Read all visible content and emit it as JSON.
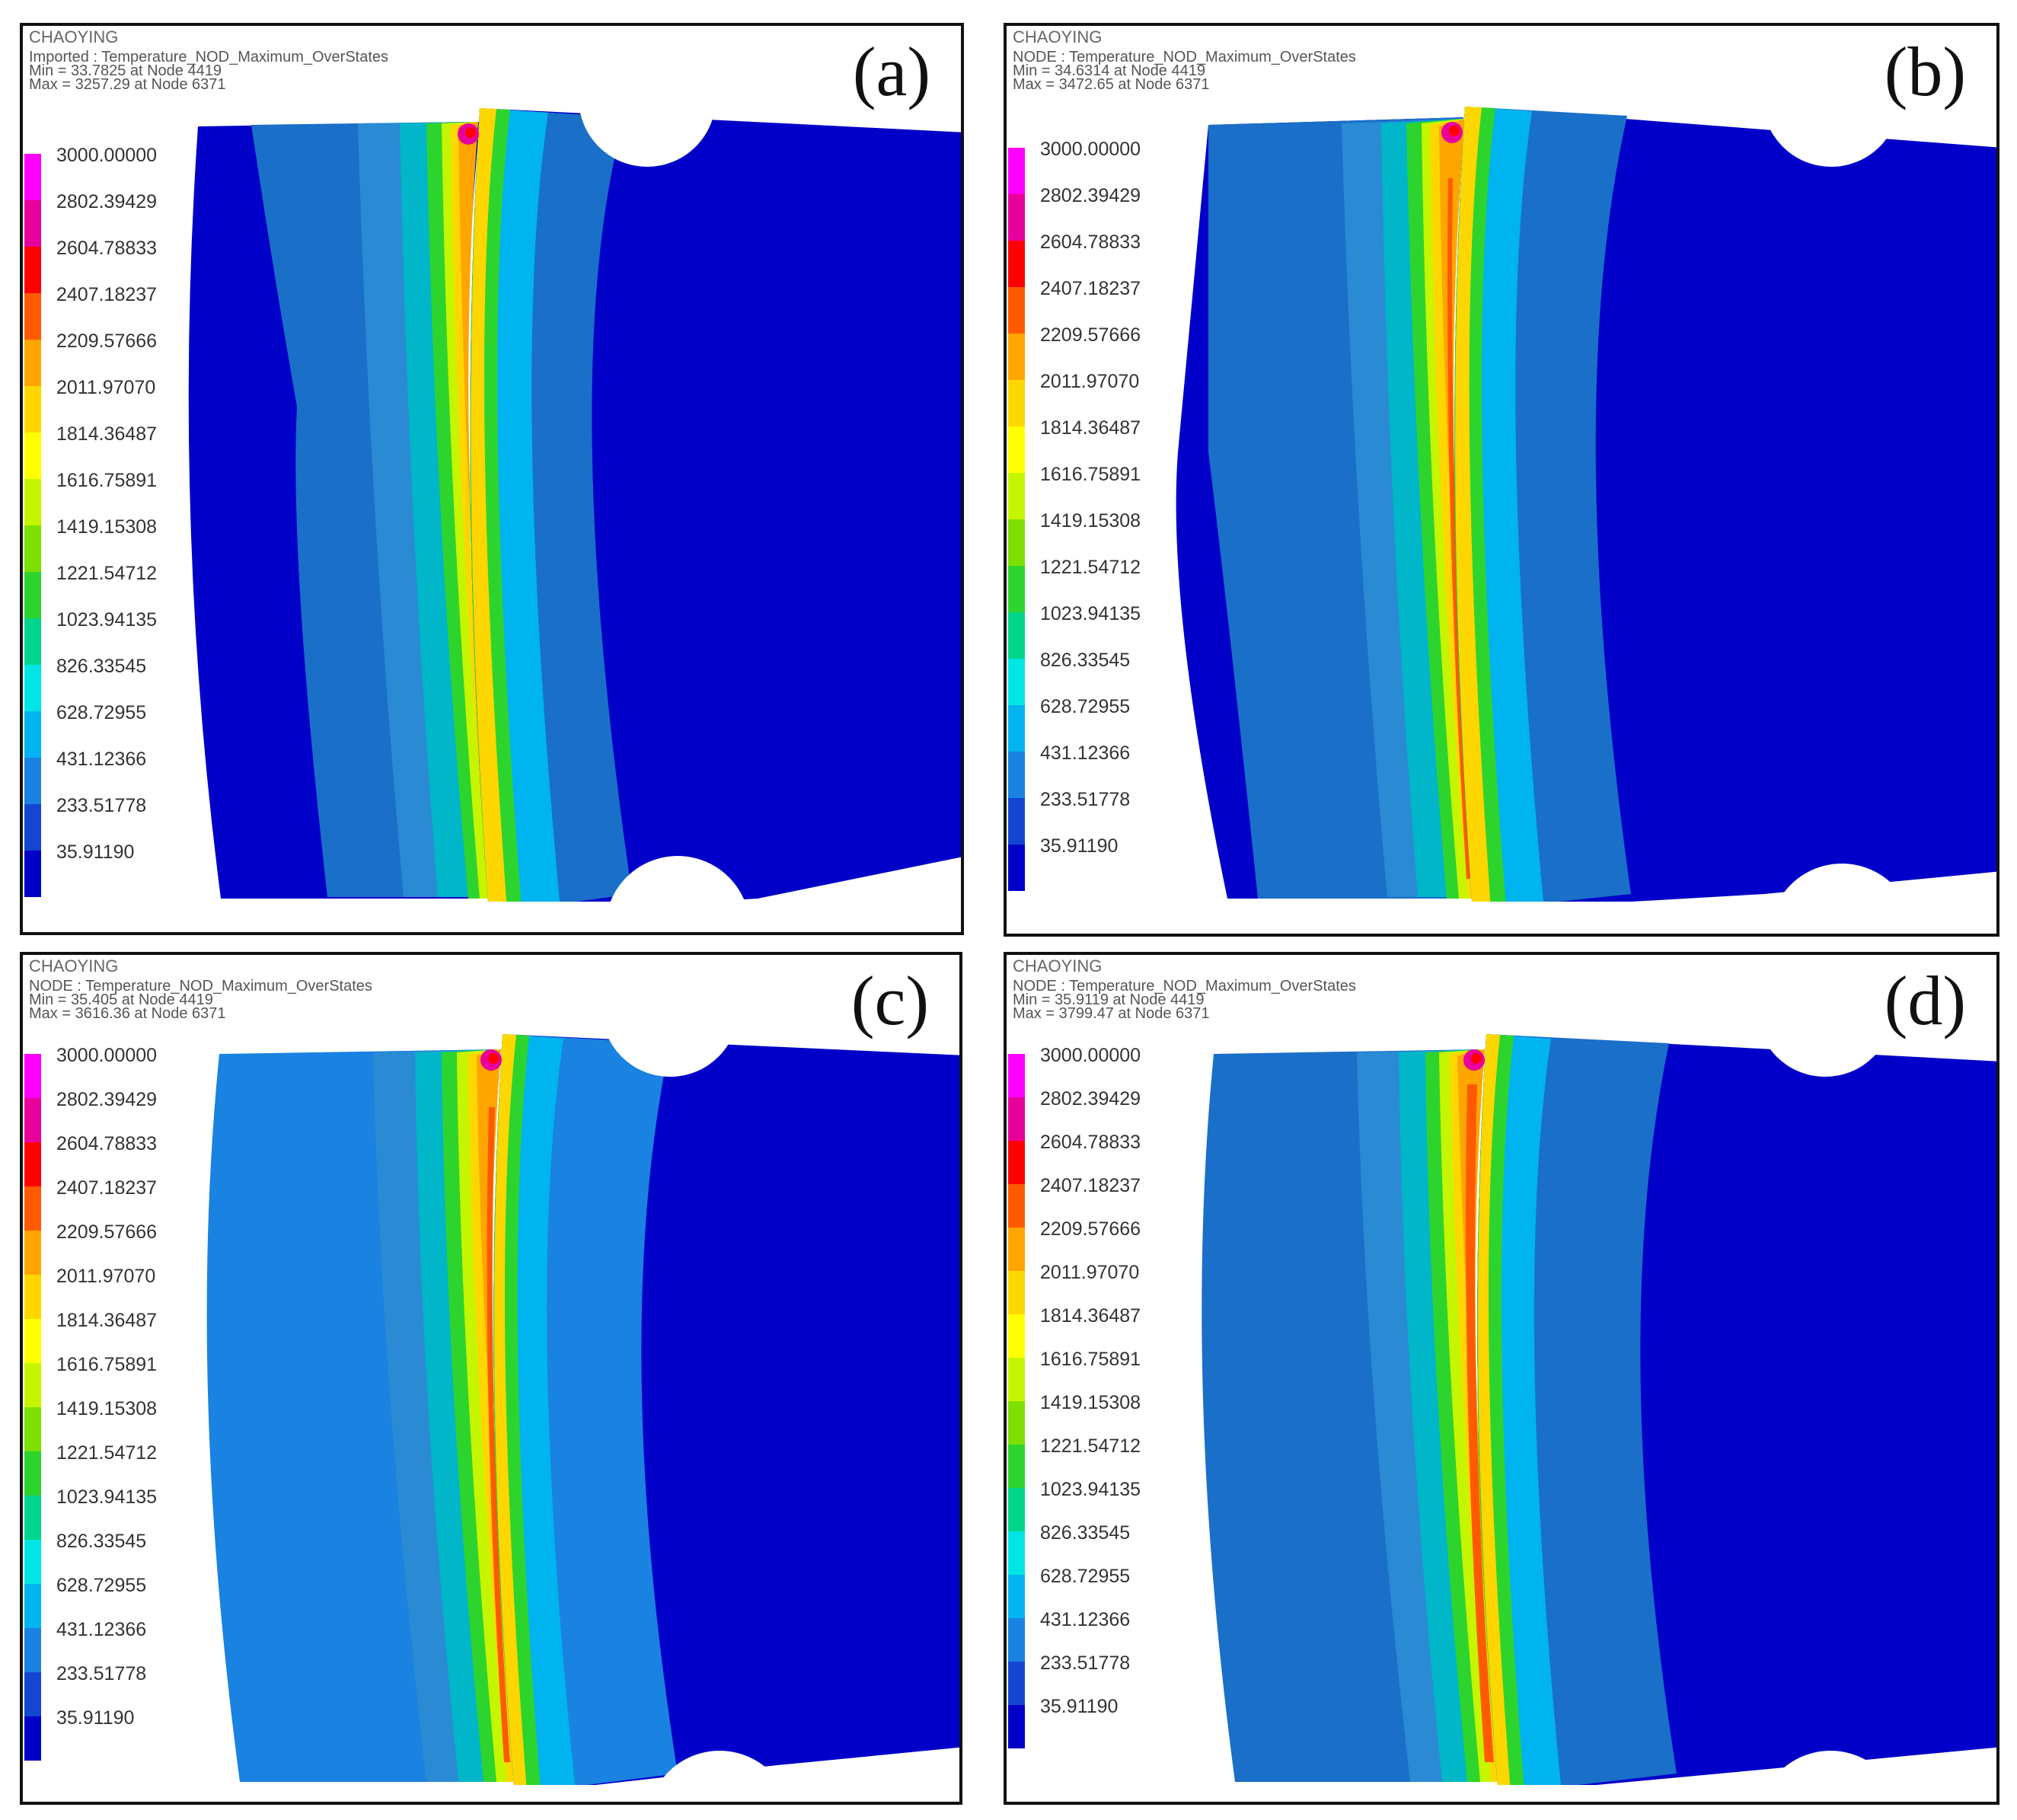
{
  "brand": "CHAOYING",
  "legend_values": [
    "3000.00000",
    "2802.39429",
    "2604.78833",
    "2407.18237",
    "2209.57666",
    "2011.97070",
    "1814.36487",
    "1616.75891",
    "1419.15308",
    "1221.54712",
    "1023.94135",
    "826.33545",
    "628.72955",
    "431.12366",
    "233.51778",
    "35.91190"
  ],
  "legend_colors": [
    "#ff00ff",
    "#e8009c",
    "#ff0000",
    "#ff5a00",
    "#ffa500",
    "#ffd700",
    "#ffff00",
    "#c6f500",
    "#7ee000",
    "#2ed42e",
    "#00d68b",
    "#00e6e6",
    "#00b4f0",
    "#1a82e0",
    "#1446d2",
    "#0000c8"
  ],
  "panels": [
    {
      "label": "(a)",
      "line1": "Imported : Temperature_NOD_Maximum_OverStates",
      "line2": "Min = 33.7825 at Node 4419",
      "line3": "Max = 3257.29 at Node 6371"
    },
    {
      "label": "(b)",
      "line1": "NODE : Temperature_NOD_Maximum_OverStates",
      "line2": "Min = 34.6314 at Node 4419",
      "line3": "Max = 3472.65 at Node 6371"
    },
    {
      "label": "(c)",
      "line1": "NODE : Temperature_NOD_Maximum_OverStates",
      "line2": "Min = 35.405 at Node 4419",
      "line3": "Max = 3616.36 at Node 6371"
    },
    {
      "label": "(d)",
      "line1": "NODE : Temperature_NOD_Maximum_OverStates",
      "line2": "Min = 35.9119 at Node 4419",
      "line3": "Max = 3799.47 at Node 6371"
    }
  ]
}
